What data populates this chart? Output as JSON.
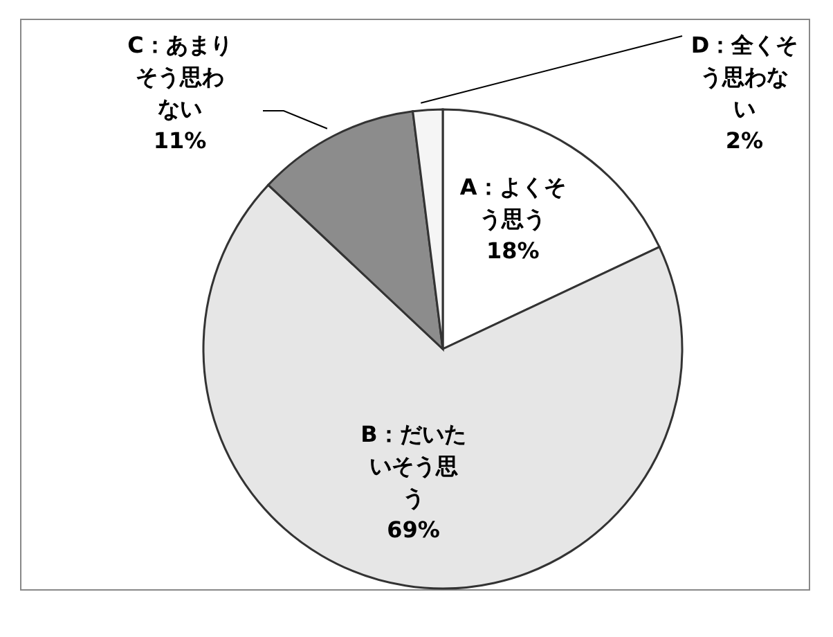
{
  "chart_data": {
    "type": "pie",
    "categories": [
      "A：よくそう思う",
      "B：だいたいそう思う",
      "C：あまりそう思わない",
      "D：全くそう思わない"
    ],
    "values": [
      18,
      69,
      11,
      2
    ],
    "value_labels": [
      "18%",
      "69%",
      "11%",
      "2%"
    ],
    "colors": [
      "#ffffff",
      "#e6e6e6",
      "#8c8c8c",
      "#f5f5f5"
    ]
  }
}
